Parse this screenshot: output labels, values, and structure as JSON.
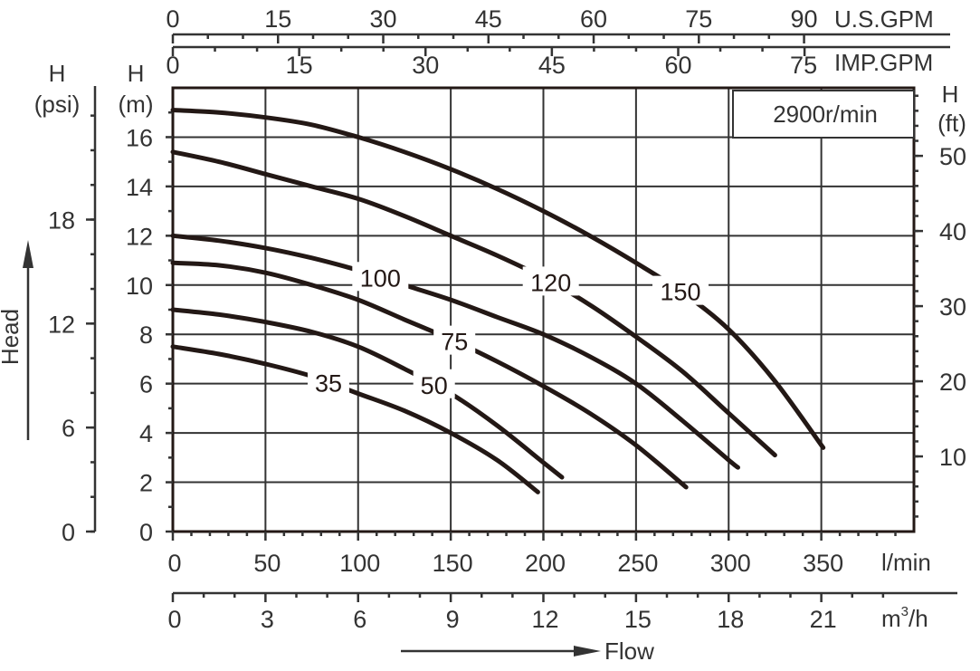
{
  "chart_data": {
    "type": "line",
    "annotation": "2900r/min",
    "x": {
      "label": "Flow",
      "unit": "l/min",
      "range": [
        0,
        400
      ],
      "ticks": [
        0,
        50,
        100,
        150,
        200,
        250,
        300,
        350
      ]
    },
    "x_secondary": {
      "unit": "m³/h",
      "unit_base": "m",
      "unit_sup": "3",
      "unit_tail": "/h",
      "ticks": [
        0,
        3,
        6,
        9,
        12,
        15,
        18,
        21
      ]
    },
    "x_top_usgpm": {
      "unit": "U.S.GPM",
      "ticks": [
        0,
        15,
        30,
        45,
        60,
        75,
        90
      ]
    },
    "x_top_impgpm": {
      "unit": "IMP.GPM",
      "ticks": [
        0,
        15,
        30,
        45,
        60,
        75
      ]
    },
    "y": {
      "unit_line1": "H",
      "unit_line2": "(m)",
      "range": [
        0,
        18
      ],
      "ticks": [
        0,
        2,
        4,
        6,
        8,
        10,
        12,
        14,
        16
      ]
    },
    "y_left_psi": {
      "label": "Head",
      "unit_line1": "H",
      "unit_line2": "(psi)",
      "ticks": [
        0,
        6,
        12,
        18
      ]
    },
    "y_right_ft": {
      "unit_line1": "H",
      "unit_line2": "(ft)",
      "ticks": [
        10,
        20,
        30,
        40,
        50
      ]
    },
    "grid": true,
    "series": [
      {
        "name": "35",
        "x": [
          0,
          25,
          50,
          75,
          100,
          125,
          150,
          175,
          197
        ],
        "y": [
          7.5,
          7.2,
          6.8,
          6.3,
          5.6,
          4.9,
          4.0,
          2.9,
          1.6
        ]
      },
      {
        "name": "50",
        "x": [
          0,
          25,
          50,
          75,
          100,
          125,
          150,
          175,
          200,
          210
        ],
        "y": [
          9.0,
          8.8,
          8.5,
          8.1,
          7.5,
          6.6,
          5.6,
          4.3,
          2.8,
          2.2
        ]
      },
      {
        "name": "75",
        "x": [
          0,
          25,
          50,
          75,
          100,
          125,
          150,
          175,
          200,
          225,
          250,
          277
        ],
        "y": [
          10.9,
          10.8,
          10.5,
          10.0,
          9.4,
          8.6,
          7.8,
          6.9,
          5.9,
          4.8,
          3.5,
          1.8
        ]
      },
      {
        "name": "100",
        "x": [
          0,
          25,
          50,
          75,
          100,
          125,
          150,
          175,
          200,
          225,
          250,
          275,
          300,
          305
        ],
        "y": [
          12.0,
          11.8,
          11.5,
          11.1,
          10.6,
          10.0,
          9.4,
          8.7,
          8.0,
          7.1,
          6.0,
          4.5,
          2.9,
          2.6
        ]
      },
      {
        "name": "120",
        "x": [
          0,
          25,
          50,
          75,
          100,
          125,
          150,
          175,
          200,
          225,
          250,
          275,
          300,
          325
        ],
        "y": [
          15.4,
          15.0,
          14.5,
          14.0,
          13.5,
          12.8,
          12.0,
          11.2,
          10.3,
          9.2,
          7.9,
          6.5,
          4.8,
          3.1
        ]
      },
      {
        "name": "150",
        "x": [
          0,
          25,
          50,
          75,
          100,
          125,
          150,
          175,
          200,
          225,
          250,
          275,
          300,
          325,
          351
        ],
        "y": [
          17.1,
          17.0,
          16.8,
          16.5,
          16.0,
          15.4,
          14.7,
          13.9,
          13.0,
          12.0,
          10.9,
          9.7,
          8.2,
          6.1,
          3.4
        ]
      }
    ]
  }
}
